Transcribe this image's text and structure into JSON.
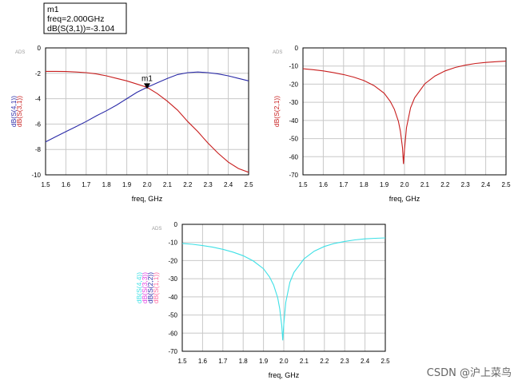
{
  "marker_box": {
    "name": "m1",
    "freq_line": "freq=2.000GHz",
    "value_line": "dB(S(3,1))=-3.104"
  },
  "watermark": "CSDN @沪上菜鸟",
  "colors": {
    "blue": "#2a2aa8",
    "red": "#c81e1e",
    "cyan": "#3fe0e6",
    "magenta": "#e040e0",
    "pink": "#ff6aa0",
    "axis_text": "#000000",
    "grid": "#c8c8c8"
  },
  "chart_data": [
    {
      "id": "plot1",
      "type": "line",
      "corner_tag": "ADS",
      "xlabel": "freq, GHz",
      "xlim": [
        1.5,
        2.5
      ],
      "ylim": [
        -10,
        0
      ],
      "xticks": [
        "1.5",
        "1.6",
        "1.7",
        "1.8",
        "1.9",
        "2.0",
        "2.1",
        "2.2",
        "2.3",
        "2.4",
        "2.5"
      ],
      "yticks": [
        "0",
        "-2",
        "-4",
        "-6",
        "-8",
        "-10"
      ],
      "ytick_values": [
        0,
        -2,
        -4,
        -6,
        -8,
        -10
      ],
      "ylabels": [
        {
          "text": "dB(S(4,1))",
          "color": "blue"
        },
        {
          "text": "dB(S(3,1))",
          "color": "red"
        }
      ],
      "marker": {
        "label": "m1",
        "x": 2.0,
        "y": -3.104
      },
      "series": [
        {
          "name": "dB(S(4,1))",
          "color": "blue",
          "x": [
            1.5,
            1.55,
            1.6,
            1.65,
            1.7,
            1.75,
            1.8,
            1.85,
            1.9,
            1.95,
            2.0,
            2.05,
            2.1,
            2.15,
            2.2,
            2.25,
            2.3,
            2.35,
            2.4,
            2.45,
            2.5
          ],
          "y": [
            -7.4,
            -7.0,
            -6.6,
            -6.2,
            -5.8,
            -5.35,
            -4.95,
            -4.5,
            -4.0,
            -3.5,
            -3.104,
            -2.75,
            -2.4,
            -2.1,
            -1.95,
            -1.9,
            -1.95,
            -2.05,
            -2.2,
            -2.4,
            -2.6
          ]
        },
        {
          "name": "dB(S(3,1))",
          "color": "red",
          "x": [
            1.5,
            1.55,
            1.6,
            1.65,
            1.7,
            1.75,
            1.8,
            1.85,
            1.9,
            1.95,
            2.0,
            2.05,
            2.1,
            2.15,
            2.2,
            2.25,
            2.3,
            2.35,
            2.4,
            2.45,
            2.5
          ],
          "y": [
            -1.85,
            -1.85,
            -1.86,
            -1.9,
            -1.95,
            -2.05,
            -2.2,
            -2.4,
            -2.6,
            -2.85,
            -3.104,
            -3.6,
            -4.2,
            -4.9,
            -5.8,
            -6.6,
            -7.5,
            -8.3,
            -9.0,
            -9.5,
            -9.8
          ]
        }
      ]
    },
    {
      "id": "plot2",
      "type": "line",
      "corner_tag": "ADS",
      "xlabel": "freq, GHz",
      "xlim": [
        1.5,
        2.5
      ],
      "ylim": [
        -70,
        0
      ],
      "xticks": [
        "1.5",
        "1.6",
        "1.7",
        "1.8",
        "1.9",
        "2.0",
        "2.1",
        "2.2",
        "2.3",
        "2.4",
        "2.5"
      ],
      "yticks": [
        "0",
        "-10",
        "-20",
        "-30",
        "-40",
        "-50",
        "-60",
        "-70"
      ],
      "ytick_values": [
        0,
        -10,
        -20,
        -30,
        -40,
        -50,
        -60,
        -70
      ],
      "ylabels": [
        {
          "text": "dB(S(2,1))",
          "color": "red"
        }
      ],
      "series": [
        {
          "name": "dB(S(2,1))",
          "color": "red",
          "x": [
            1.5,
            1.55,
            1.6,
            1.65,
            1.7,
            1.75,
            1.8,
            1.85,
            1.9,
            1.93,
            1.95,
            1.97,
            1.98,
            1.99,
            1.995,
            2.0,
            2.01,
            2.03,
            2.05,
            2.1,
            2.15,
            2.2,
            2.25,
            2.3,
            2.35,
            2.4,
            2.45,
            2.5
          ],
          "y": [
            -11.5,
            -12.0,
            -12.7,
            -13.6,
            -14.7,
            -16.1,
            -18.0,
            -20.8,
            -25.0,
            -29.5,
            -33.8,
            -40.5,
            -46.0,
            -55.0,
            -64.0,
            -56.0,
            -44.0,
            -33.0,
            -27.5,
            -19.8,
            -15.5,
            -12.7,
            -10.8,
            -9.5,
            -8.6,
            -8.0,
            -7.6,
            -7.3
          ]
        }
      ]
    },
    {
      "id": "plot3",
      "type": "line",
      "corner_tag": "ADS",
      "xlabel": "freq, GHz",
      "xlim": [
        1.5,
        2.5
      ],
      "ylim": [
        -70,
        0
      ],
      "xticks": [
        "1.5",
        "1.6",
        "1.7",
        "1.8",
        "1.9",
        "2.0",
        "2.1",
        "2.2",
        "2.3",
        "2.4",
        "2.5"
      ],
      "yticks": [
        "0",
        "-10",
        "-20",
        "-30",
        "-40",
        "-50",
        "-60",
        "-70"
      ],
      "ytick_values": [
        0,
        -10,
        -20,
        -30,
        -40,
        -50,
        -60,
        -70
      ],
      "ylabels": [
        {
          "text": "dB(S(4,4))",
          "color": "cyan"
        },
        {
          "text": "dB(S(3,3))",
          "color": "magenta"
        },
        {
          "text": "dB(S(2,2))",
          "color": "blue"
        },
        {
          "text": "dB(S(1,1))",
          "color": "pink"
        }
      ],
      "series": [
        {
          "name": "dB(S(4,4))",
          "color": "cyan",
          "x": [
            1.5,
            1.55,
            1.6,
            1.65,
            1.7,
            1.75,
            1.8,
            1.85,
            1.9,
            1.93,
            1.95,
            1.97,
            1.98,
            1.99,
            1.995,
            2.0,
            2.01,
            2.03,
            2.05,
            2.1,
            2.15,
            2.2,
            2.25,
            2.3,
            2.35,
            2.4,
            2.45,
            2.5
          ],
          "y": [
            -10.5,
            -11.0,
            -11.7,
            -12.6,
            -13.8,
            -15.3,
            -17.3,
            -20.2,
            -24.5,
            -29.0,
            -33.5,
            -40.5,
            -46.5,
            -56.0,
            -64.0,
            -55.0,
            -43.0,
            -32.0,
            -26.5,
            -19.0,
            -14.8,
            -12.2,
            -10.5,
            -9.4,
            -8.6,
            -8.0,
            -7.7,
            -7.5
          ]
        }
      ]
    }
  ]
}
